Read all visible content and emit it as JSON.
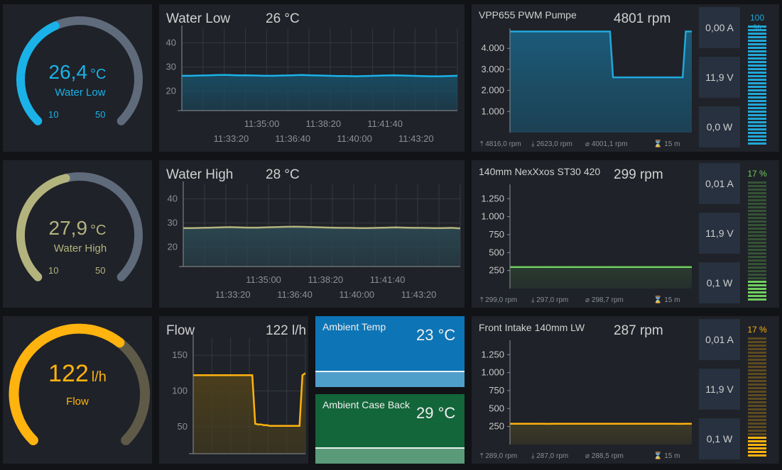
{
  "gauges": [
    {
      "value": "26,4",
      "unit": "°C",
      "label": "Water Low",
      "min": "10",
      "max": "50",
      "fraction": 0.41,
      "color": "#1ab2e8"
    },
    {
      "value": "27,9",
      "unit": "°C",
      "label": "Water High",
      "min": "10",
      "max": "50",
      "fraction": 0.45,
      "color": "#b3b37e"
    },
    {
      "value": "122",
      "unit": "l/h",
      "label": "Flow",
      "min": "",
      "max": "",
      "fraction": 0.64,
      "color": "#ffb30f"
    }
  ],
  "temp_charts": [
    {
      "title": "Water Low",
      "value": "26 °C",
      "color": "#1ab2e8",
      "fill": "#1a4a60",
      "y_ticks": [
        "40",
        "30",
        "20"
      ],
      "ylim": [
        12,
        46
      ],
      "x_ticks_row1": [
        "11:35:00",
        "11:38:20",
        "11:41:40"
      ],
      "x_ticks_row2": [
        "11:33:20",
        "11:36:40",
        "11:40:00",
        "11:43:20"
      ],
      "chart_data": {
        "type": "area",
        "x_range": [
          "11:32:00",
          "11:45:00"
        ],
        "values": [
          26.4,
          26.4,
          26.5,
          26.6,
          26.7,
          26.7,
          26.6,
          26.6,
          26.5,
          26.4,
          26.4,
          26.5,
          26.6,
          26.7,
          26.6,
          26.5,
          26.4,
          26.3,
          26.3,
          26.2,
          26.3,
          26.4,
          26.5,
          26.6,
          26.5,
          26.4,
          26.3,
          26.2,
          26.2,
          26.3,
          26.4
        ]
      }
    },
    {
      "title": "Water High",
      "value": "28 °C",
      "color": "#b3b37e",
      "fill": "#2a4650",
      "y_ticks": [
        "40",
        "30",
        "20"
      ],
      "ylim": [
        12,
        46
      ],
      "x_ticks_row1": [
        "11:35:00",
        "11:38:20",
        "11:41:40"
      ],
      "x_ticks_row2": [
        "11:33:20",
        "11:36:40",
        "11:40:00",
        "11:43:20"
      ],
      "chart_data": {
        "type": "area",
        "x_range": [
          "11:32:00",
          "11:45:00"
        ],
        "values": [
          27.9,
          27.9,
          28.0,
          28.1,
          28.2,
          28.3,
          28.2,
          28.1,
          28.1,
          28.2,
          28.3,
          28.4,
          28.5,
          28.4,
          28.3,
          28.2,
          28.1,
          28.0,
          28.0,
          27.9,
          27.9,
          28.0,
          28.1,
          28.2,
          28.1,
          28.0,
          28.0,
          27.9,
          27.9,
          28.0,
          27.8
        ]
      }
    },
    {
      "title": "Flow",
      "value": "122 l/h",
      "color": "#ffb30f",
      "fill": "#4a3e1c",
      "y_ticks": [
        "150",
        "100",
        "50"
      ],
      "ylim": [
        12,
        175
      ],
      "x_ticks_row1": [],
      "x_ticks_row2": [],
      "chart_data": {
        "type": "area",
        "values": [
          122,
          122,
          122,
          122,
          122,
          122,
          122,
          122,
          122,
          122,
          122,
          122,
          122,
          122,
          122,
          122,
          122,
          122,
          122,
          122,
          122,
          54,
          53,
          53,
          52,
          52,
          51,
          51,
          51,
          51,
          51,
          51,
          51,
          51,
          51,
          51,
          51,
          122,
          125
        ]
      }
    }
  ],
  "fans": [
    {
      "title": "VPP655 PWM Pumpe",
      "value": "4801 rpm",
      "color": "#21a7d8",
      "fill": "#1b5a78",
      "y_ticks": [
        "4.000",
        "3.000",
        "2.000",
        "1.000"
      ],
      "ylim": [
        0,
        4950
      ],
      "stat_max": "4816,0 rpm",
      "stat_min": "2623,0 rpm",
      "stat_avg": "4001,1 rpm",
      "stat_span": "15 m",
      "current": "0,00 A",
      "voltage": "11,9 V",
      "power": "0,0 W",
      "percent": "100 %",
      "level": 1.0,
      "chart_data": {
        "type": "area",
        "values": [
          4801,
          4801,
          4801,
          4801,
          4801,
          4801,
          4801,
          4801,
          4801,
          4801,
          4801,
          4801,
          4801,
          4801,
          4801,
          4801,
          4801,
          4801,
          4801,
          4801,
          4801,
          4801,
          4801,
          4801,
          4801,
          4801,
          4801,
          4801,
          4801,
          4801,
          4801,
          4801,
          4801,
          4801,
          2623,
          2623,
          2623,
          2623,
          2623,
          2623,
          2623,
          2623,
          2623,
          2623,
          2623,
          2623,
          2623,
          2623,
          2623,
          2623,
          2623,
          2623,
          2623,
          2623,
          2623,
          2623,
          2623,
          2623,
          4801,
          4801,
          4801
        ]
      }
    },
    {
      "title": "140mm NexXxos ST30 420",
      "value": "299 rpm",
      "color": "#6fcf5d",
      "fill": "#2a3a30",
      "y_ticks": [
        "1.250",
        "1.000",
        "750",
        "500",
        "250"
      ],
      "ylim": [
        0,
        1450
      ],
      "stat_max": "299,0 rpm",
      "stat_min": "297,0 rpm",
      "stat_avg": "298,7 rpm",
      "stat_span": "15 m",
      "current": "0,01 A",
      "voltage": "11,9 V",
      "power": "0,1 W",
      "percent": "17 %",
      "level": 0.17,
      "chart_data": {
        "type": "area",
        "values": [
          299,
          299,
          299,
          298,
          299,
          299,
          299,
          299,
          298,
          299,
          299,
          299,
          299,
          299,
          298,
          299,
          299,
          299,
          299,
          299,
          299,
          299,
          299,
          299,
          299,
          299,
          299,
          299,
          299,
          299
        ]
      }
    },
    {
      "title": "Front Intake 140mm LW",
      "value": "287 rpm",
      "color": "#ffb30f",
      "fill": "#3d3a26",
      "y_ticks": [
        "1.250",
        "1.000",
        "750",
        "500",
        "250"
      ],
      "ylim": [
        0,
        1450
      ],
      "stat_max": "289,0 rpm",
      "stat_min": "287,0 rpm",
      "stat_avg": "288,5 rpm",
      "stat_span": "15 m",
      "current": "0,01 A",
      "voltage": "11,9 V",
      "power": "0,1 W",
      "percent": "17 %",
      "level": 0.17,
      "chart_data": {
        "type": "area",
        "values": [
          288,
          288,
          289,
          288,
          288,
          288,
          287,
          288,
          288,
          289,
          288,
          288,
          288,
          288,
          289,
          288,
          288,
          288,
          288,
          288,
          288,
          289,
          288,
          288,
          288,
          288,
          288,
          287,
          288,
          288
        ]
      }
    }
  ],
  "ambient": [
    {
      "title": "Ambient Temp",
      "value": "23 °C",
      "bg": "#0d74b5",
      "bg2": "#4f9fcb"
    },
    {
      "title": "Ambient Case Back",
      "value": "29 °C",
      "bg": "#13653a",
      "bg2": "#5a9a79"
    }
  ],
  "colors": {
    "panel": "#1f2228",
    "page": "#111317",
    "grid": "#343840",
    "axis": "#8c9096",
    "gauge_track": "#5f6b7b",
    "flow_track": "#5e5a47"
  }
}
